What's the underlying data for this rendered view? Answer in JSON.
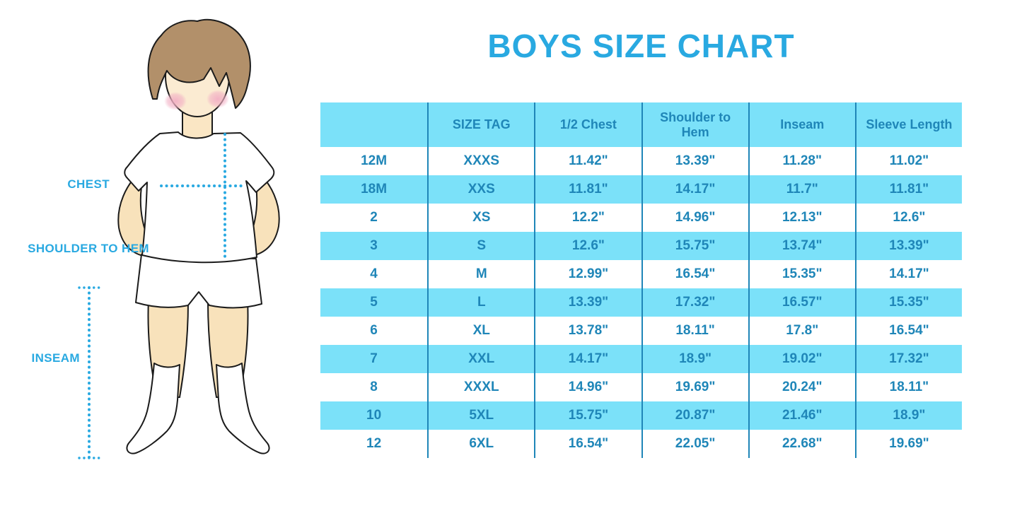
{
  "title": "BOYS SIZE CHART",
  "figure": {
    "labels": {
      "chest": "CHEST",
      "shoulder_to_hem": "SHOULDER TO HEM",
      "inseam": "INSEAM"
    }
  },
  "colors": {
    "accent": "#29A9E1",
    "table_text": "#1F86B8",
    "row_stripe": "#7BE1F9",
    "grid_line": "#1F86B8"
  },
  "chart_data": {
    "type": "table",
    "title": "BOYS SIZE CHART",
    "columns": [
      "",
      "SIZE TAG",
      "1/2 Chest",
      "Shoulder to Hem",
      "Inseam",
      "Sleeve Length"
    ],
    "rows": [
      [
        "12M",
        "XXXS",
        "11.42\"",
        "13.39\"",
        "11.28\"",
        "11.02\""
      ],
      [
        "18M",
        "XXS",
        "11.81\"",
        "14.17\"",
        "11.7\"",
        "11.81\""
      ],
      [
        "2",
        "XS",
        "12.2\"",
        "14.96\"",
        "12.13\"",
        "12.6\""
      ],
      [
        "3",
        "S",
        "12.6\"",
        "15.75\"",
        "13.74\"",
        "13.39\""
      ],
      [
        "4",
        "M",
        "12.99\"",
        "16.54\"",
        "15.35\"",
        "14.17\""
      ],
      [
        "5",
        "L",
        "13.39\"",
        "17.32\"",
        "16.57\"",
        "15.35\""
      ],
      [
        "6",
        "XL",
        "13.78\"",
        "18.11\"",
        "17.8\"",
        "16.54\""
      ],
      [
        "7",
        "XXL",
        "14.17\"",
        "18.9\"",
        "19.02\"",
        "17.32\""
      ],
      [
        "8",
        "XXXL",
        "14.96\"",
        "19.69\"",
        "20.24\"",
        "18.11\""
      ],
      [
        "10",
        "5XL",
        "15.75\"",
        "20.87\"",
        "21.46\"",
        "18.9\""
      ],
      [
        "12",
        "6XL",
        "16.54\"",
        "22.05\"",
        "22.68\"",
        "19.69\""
      ]
    ],
    "notes": "Header row and alternating data rows (18M,3,5,7,10) have light-cyan stripe background"
  }
}
